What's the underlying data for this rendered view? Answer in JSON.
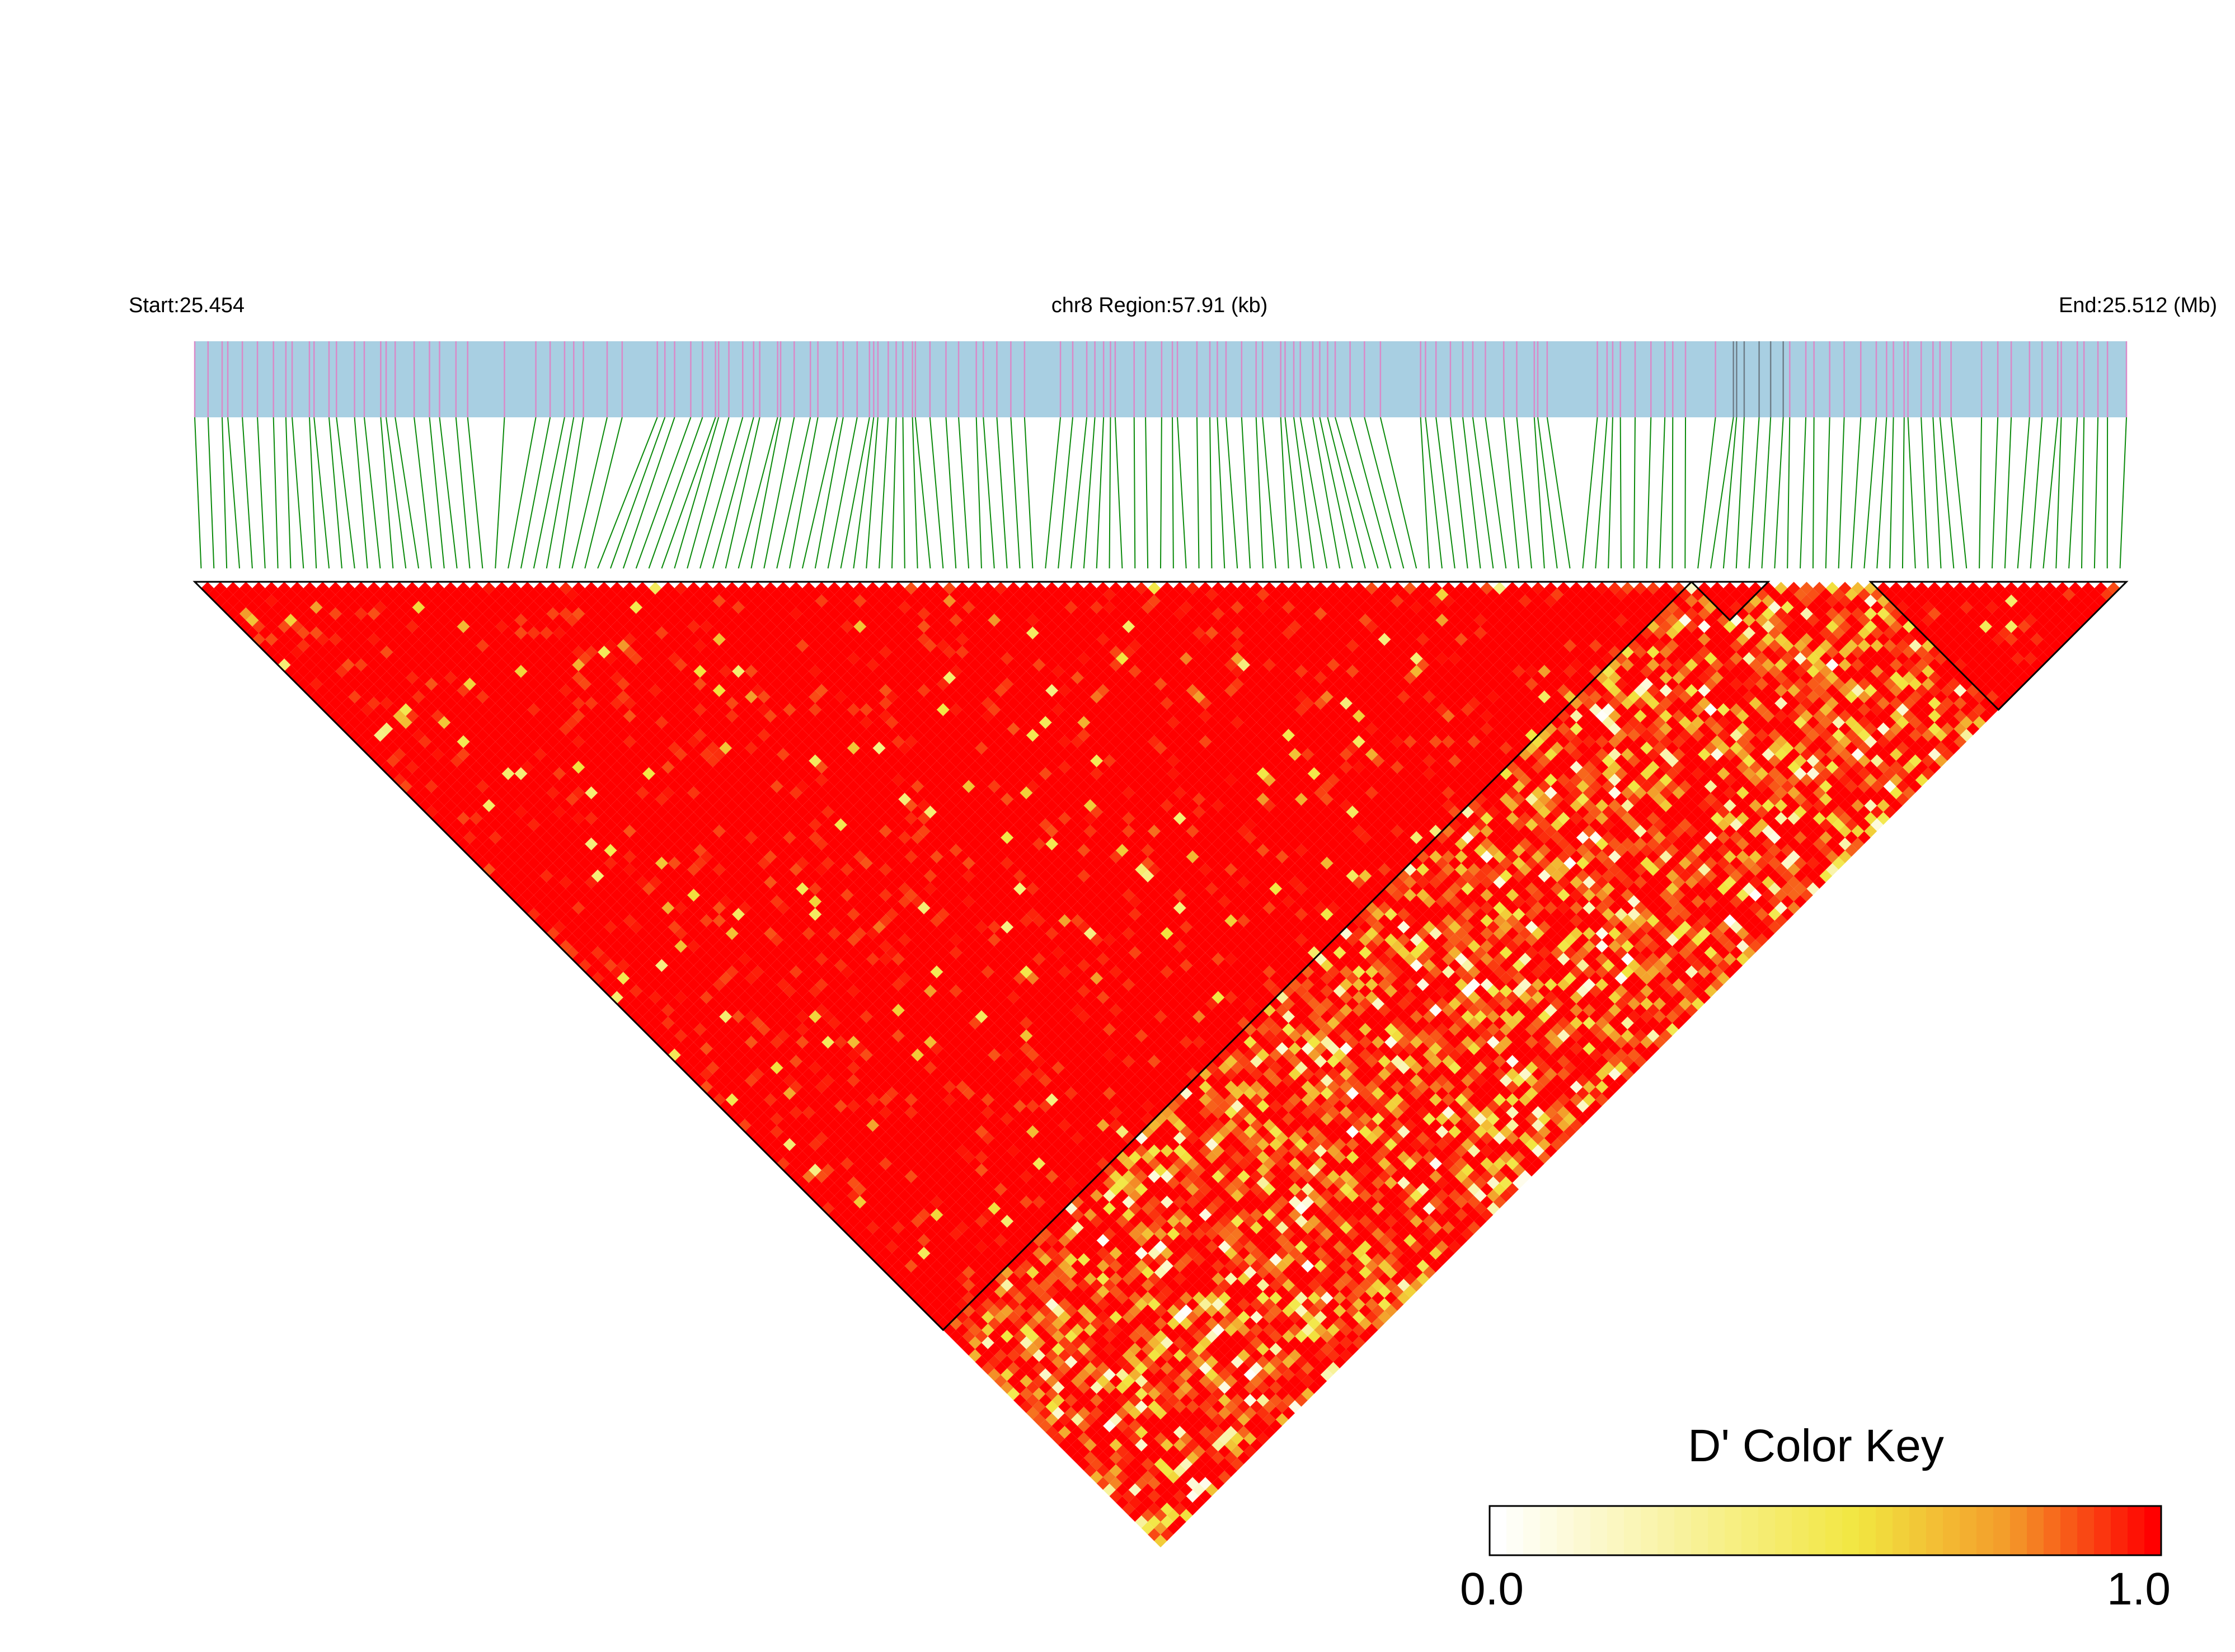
{
  "header": {
    "start_label": "Start:25.454",
    "region_label": "chr8 Region:57.91 (kb)",
    "end_label": "End:25.512 (Mb)"
  },
  "legend": {
    "title": "D' Color Key",
    "min_label": "0.0",
    "max_label": "1.0"
  },
  "colors": {
    "bar_background": "#a8cfe2",
    "snp_tick": "#d98ac8",
    "snp_tick_alt": "#6f7f8a",
    "connector": "#0a8a0a",
    "high_ld": "#ff0000",
    "mid_ld": "#f2e640",
    "low_ld": "#ffffff",
    "block_outline": "#000000"
  },
  "chart_data": {
    "type": "heatmap",
    "subtype": "ld-triangle",
    "chromosome": "chr8",
    "start_mb": 25.454,
    "end_mb": 25.512,
    "region_kb": 57.91,
    "n_snps": 151,
    "value_range": [
      0.0,
      1.0
    ],
    "metric": "D'",
    "colorscale": [
      "#ffffff",
      "#f2e640",
      "#f39a2a",
      "#ff0000"
    ],
    "haplotype_blocks": [
      {
        "first_snp": 1,
        "last_snp": 117
      },
      {
        "first_snp": 118,
        "last_snp": 123
      },
      {
        "first_snp": 132,
        "last_snp": 151
      }
    ],
    "legend_position": "bottom-right",
    "grid": false
  }
}
